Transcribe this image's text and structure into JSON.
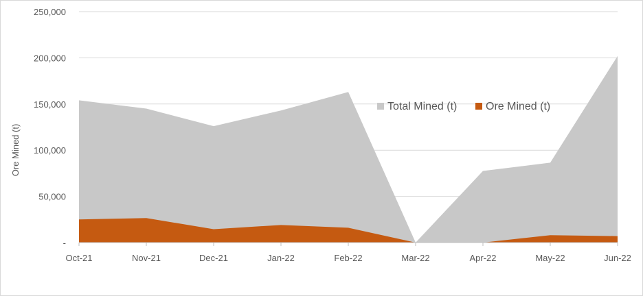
{
  "chart_data": {
    "type": "area",
    "categories": [
      "Oct-21",
      "Nov-21",
      "Dec-21",
      "Jan-22",
      "Feb-22",
      "Mar-22",
      "Apr-22",
      "May-22",
      "Jun-22"
    ],
    "series": [
      {
        "name": "Total Mined (t)",
        "color": "#c8c8c8",
        "values": [
          154000,
          145000,
          126000,
          143000,
          163000,
          0,
          77500,
          86500,
          202000
        ]
      },
      {
        "name": "Ore Mined (t)",
        "color": "#c55a11",
        "values": [
          25000,
          26500,
          14500,
          19000,
          16000,
          0,
          0,
          8000,
          7000
        ]
      }
    ],
    "title": "",
    "xlabel": "",
    "ylabel": "Ore Mined (t)",
    "ylim": [
      0,
      250000
    ],
    "yticks": [
      0,
      50000,
      100000,
      150000,
      200000,
      250000
    ],
    "ytick_labels": [
      "-",
      "50,000",
      "100,000",
      "150,000",
      "200,000",
      "250,000"
    ],
    "grid": true,
    "legend_position": "right"
  }
}
